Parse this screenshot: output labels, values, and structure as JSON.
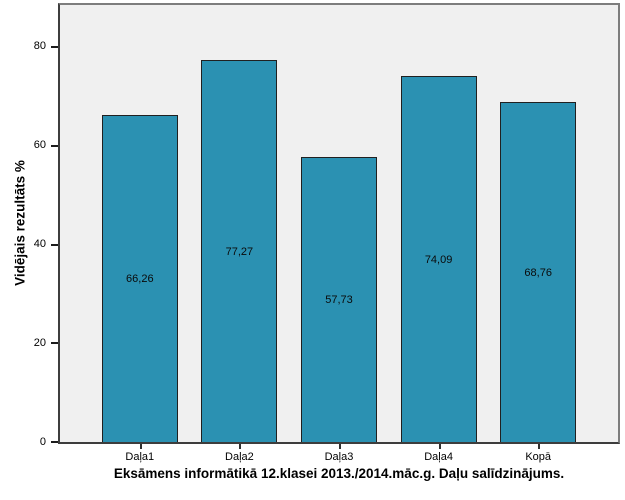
{
  "chart_data": {
    "type": "bar",
    "title": "Eksāmens informātikā 12.klasei 2013./2014.māc.g. Daļu salīdzinājums.",
    "ylabel": "Vidējais rezultāts %",
    "xlabel": "",
    "categories": [
      "Daļa1",
      "Daļa2",
      "Daļa3",
      "Daļa4",
      "Kopā"
    ],
    "values": [
      66.26,
      77.27,
      57.73,
      74.09,
      68.76
    ],
    "value_labels": [
      "66,26",
      "77,27",
      "57,73",
      "74,09",
      "68,76"
    ],
    "y_ticks": [
      0,
      20,
      40,
      60,
      80
    ],
    "y_tick_labels": [
      "0",
      "20",
      "40",
      "60",
      "80"
    ],
    "ylim": [
      0,
      88.5
    ],
    "grid": false,
    "legend": "none",
    "colors": {
      "bar_fill": "#2B91B2",
      "bar_border": "#202020",
      "plot_background": "#F0F0F0",
      "frame_light": "#7D7D7D",
      "axis_dark": "#3D3D3D"
    }
  }
}
